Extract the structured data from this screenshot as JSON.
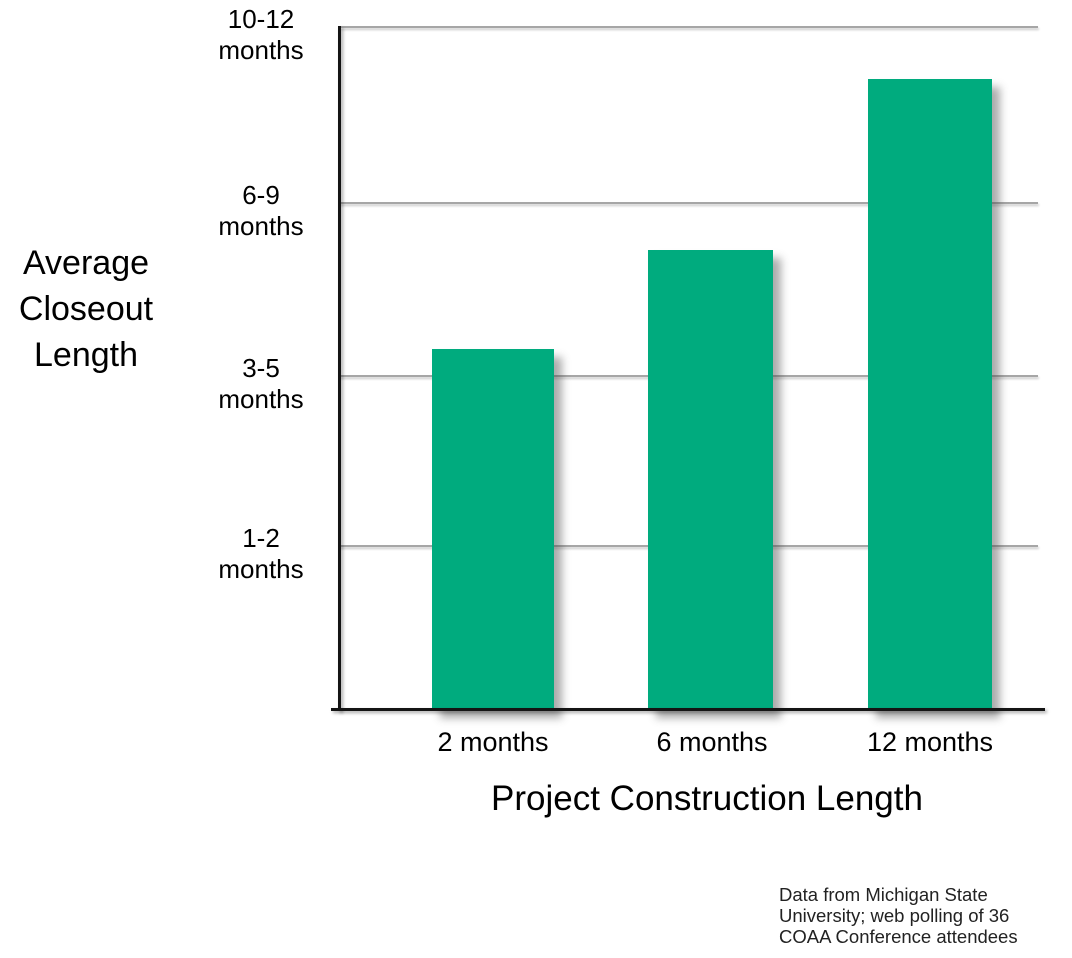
{
  "chart_data": {
    "type": "bar",
    "title": "",
    "xlabel": "Project Construction Length",
    "ylabel": "Average Closeout Length",
    "ylabel_lines": "Average\nCloseout\nLength",
    "categories": [
      "2 months",
      "6 months",
      "12 months"
    ],
    "values": [
      2.11,
      2.69,
      3.69
    ],
    "value_scale": "y-axis category index: 1 = 1-2 months, 2 = 3-5 months, 3 = 6-9 months, 4 = 10-12 months",
    "ylim": [
      0,
      4
    ],
    "yticks": [
      {
        "value": 4,
        "label": "10-12\nmonths"
      },
      {
        "value": 3,
        "label": "6-9\nmonths"
      },
      {
        "value": 2,
        "label": "3-5\nmonths"
      },
      {
        "value": 1,
        "label": "1-2\nmonths"
      }
    ],
    "grid": true,
    "legend": false,
    "bar_color": "#00AB7E",
    "gridline_color": "#A6A6A6",
    "axis_color": "#141414"
  },
  "footnote": "Data from Michigan State\nUniversity; web polling of 36\nCOAA Conference attendees"
}
